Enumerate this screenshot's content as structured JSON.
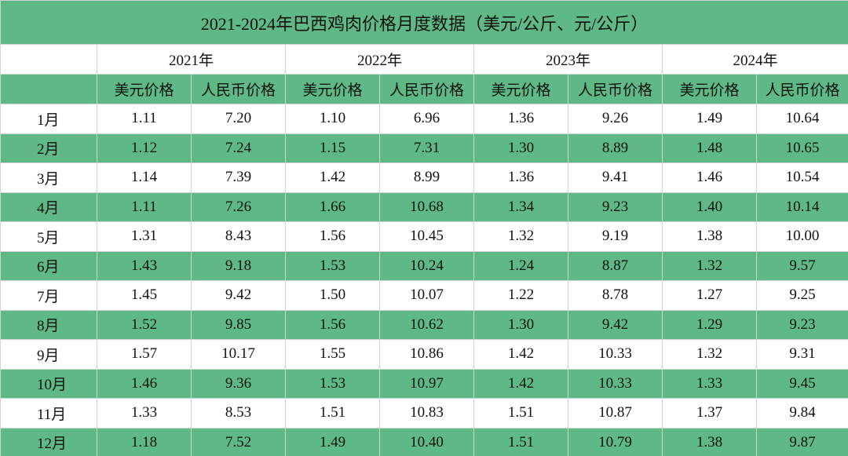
{
  "title": "2021-2024年巴西鸡肉价格月度数据（美元/公斤、元/公斤）",
  "years": [
    "2021年",
    "2022年",
    "2023年",
    "2024年"
  ],
  "subheaders": [
    "美元价格",
    "人民币价格",
    "美元价格",
    "人民币价格",
    "美元价格",
    "人民币价格",
    "美元价格",
    "人民币价格"
  ],
  "rows": [
    {
      "month": "1月",
      "cells": [
        "1.11",
        "7.20",
        "1.10",
        "6.96",
        "1.36",
        "9.26",
        "1.49",
        "10.64"
      ]
    },
    {
      "month": "2月",
      "cells": [
        "1.12",
        "7.24",
        "1.15",
        "7.31",
        "1.30",
        "8.89",
        "1.48",
        "10.65"
      ]
    },
    {
      "month": "3月",
      "cells": [
        "1.14",
        "7.39",
        "1.42",
        "8.99",
        "1.36",
        "9.41",
        "1.46",
        "10.54"
      ]
    },
    {
      "month": "4月",
      "cells": [
        "1.11",
        "7.26",
        "1.66",
        "10.68",
        "1.34",
        "9.23",
        "1.40",
        "10.14"
      ]
    },
    {
      "month": "5月",
      "cells": [
        "1.31",
        "8.43",
        "1.56",
        "10.45",
        "1.32",
        "9.19",
        "1.38",
        "10.00"
      ]
    },
    {
      "month": "6月",
      "cells": [
        "1.43",
        "9.18",
        "1.53",
        "10.24",
        "1.24",
        "8.87",
        "1.32",
        "9.57"
      ]
    },
    {
      "month": "7月",
      "cells": [
        "1.45",
        "9.42",
        "1.50",
        "10.07",
        "1.22",
        "8.78",
        "1.27",
        "9.25"
      ]
    },
    {
      "month": "8月",
      "cells": [
        "1.52",
        "9.85",
        "1.56",
        "10.62",
        "1.30",
        "9.42",
        "1.29",
        "9.23"
      ]
    },
    {
      "month": "9月",
      "cells": [
        "1.57",
        "10.17",
        "1.55",
        "10.86",
        "1.42",
        "10.33",
        "1.32",
        "9.31"
      ]
    },
    {
      "month": "10月",
      "cells": [
        "1.46",
        "9.36",
        "1.53",
        "10.97",
        "1.42",
        "10.33",
        "1.33",
        "9.45"
      ]
    },
    {
      "month": "11月",
      "cells": [
        "1.33",
        "8.53",
        "1.51",
        "10.83",
        "1.51",
        "10.87",
        "1.37",
        "9.84"
      ]
    },
    {
      "month": "12月",
      "cells": [
        "1.18",
        "7.52",
        "1.49",
        "10.40",
        "1.51",
        "10.79",
        "1.38",
        "9.87"
      ]
    }
  ]
}
